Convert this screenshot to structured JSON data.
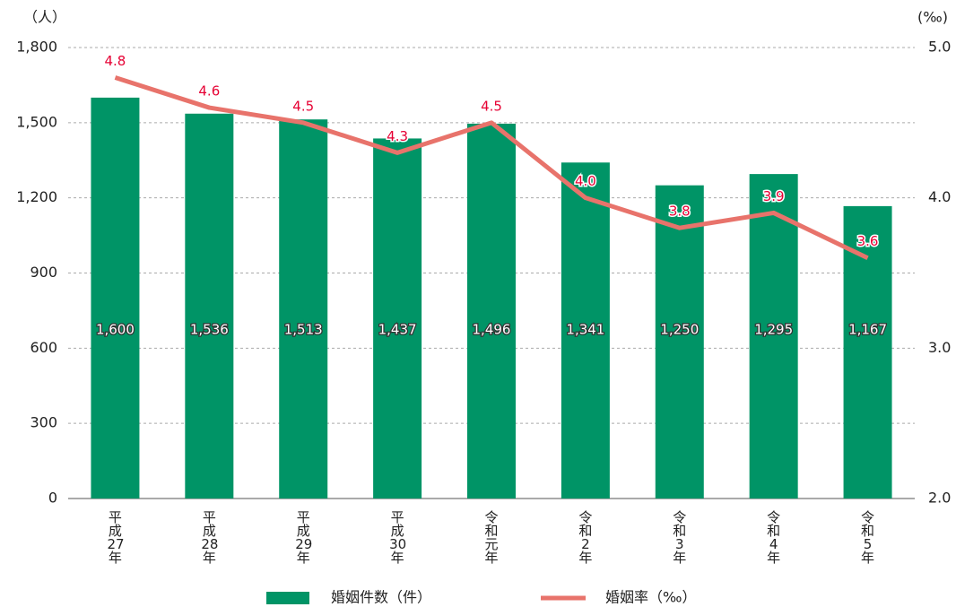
{
  "chart_data": {
    "type": "bar",
    "y_unit_label": "（人）",
    "y2_unit_label": "(‰)",
    "categories": [
      "平成27年",
      "平成28年",
      "平成29年",
      "平成30年",
      "令和元年",
      "令和2年",
      "令和3年",
      "令和4年",
      "令和5年"
    ],
    "series": [
      {
        "name": "婚姻件数（件）",
        "type": "bar",
        "color": "#009466",
        "values": [
          1600,
          1536,
          1513,
          1437,
          1496,
          1341,
          1250,
          1295,
          1167
        ],
        "value_labels": [
          "1,600",
          "1,536",
          "1,513",
          "1,437",
          "1,496",
          "1,341",
          "1,250",
          "1,295",
          "1,167"
        ]
      },
      {
        "name": "婚姻率（‰）",
        "type": "line",
        "axis": "y2",
        "color": "#e8736b",
        "label_color": "#e60033",
        "values": [
          4.8,
          4.6,
          4.5,
          4.3,
          4.5,
          4.0,
          3.8,
          3.9,
          3.6
        ],
        "value_labels": [
          "4.8",
          "4.6",
          "4.5",
          "4.3",
          "4.5",
          "4.0",
          "3.8",
          "3.9",
          "3.6"
        ]
      }
    ],
    "ylim": [
      0,
      1800
    ],
    "yticks": [
      0,
      300,
      600,
      900,
      {
        "value": 1200,
        "label": "1,200"
      },
      {
        "value": 1500,
        "label": "1,500"
      },
      {
        "value": 1800,
        "label": "1,800"
      }
    ],
    "y2lim": [
      2.0,
      5.0
    ],
    "y2ticks": [
      {
        "value": 2,
        "label": "2.0"
      },
      {
        "value": 3,
        "label": "3.0"
      },
      {
        "value": 4,
        "label": "4.0"
      },
      {
        "value": 5,
        "label": "5.0"
      }
    ],
    "grid": true
  }
}
